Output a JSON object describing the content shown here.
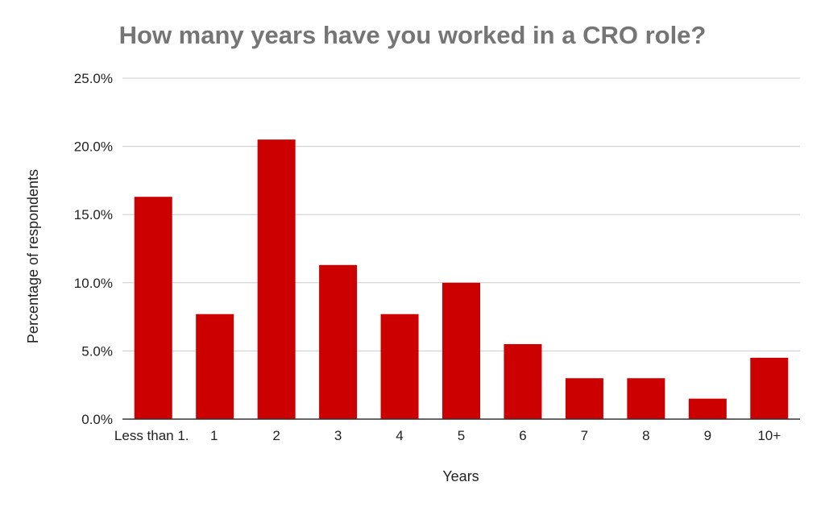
{
  "chart_data": {
    "type": "bar",
    "title": "How many years have you worked in a CRO role?",
    "xlabel": "Years",
    "ylabel": "Percentage of respondents",
    "categories": [
      "Less than 1.",
      "1",
      "2",
      "3",
      "4",
      "5",
      "6",
      "7",
      "8",
      "9",
      "10+"
    ],
    "values": [
      16.3,
      7.7,
      20.5,
      11.3,
      7.7,
      10.0,
      5.5,
      3.0,
      3.0,
      1.5,
      4.5
    ],
    "ylim": [
      0,
      25
    ],
    "yticks": [
      "0.0%",
      "5.0%",
      "10.0%",
      "15.0%",
      "20.0%",
      "25.0%"
    ],
    "bar_color": "#cc0000",
    "grid": true,
    "legend": "none"
  }
}
